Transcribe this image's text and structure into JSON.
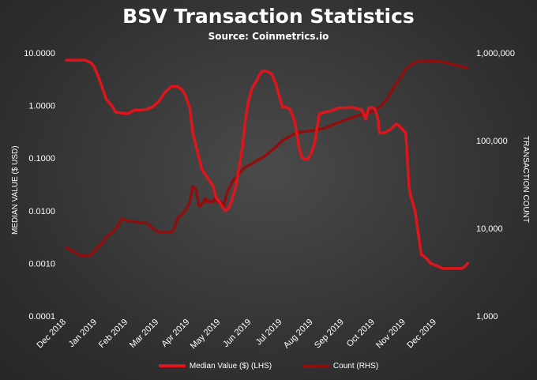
{
  "chart_data": {
    "type": "line",
    "title": "BSV Transaction Statistics",
    "subtitle": "Source:  Coinmetrics.io",
    "ylabel_left": "MEDIAN VALUE ($ USD)",
    "ylabel_right": "TRANSACTION COUNT",
    "y_left_scale": "log",
    "y_right_scale": "log",
    "y_left_ticks": [
      "10.0000",
      "1.0000",
      "0.1000",
      "0.0100",
      "0.0010",
      "0.0001"
    ],
    "y_left_tick_values": [
      10,
      1,
      0.1,
      0.01,
      0.001,
      0.0001
    ],
    "y_right_ticks": [
      "1,000,000",
      "100,000",
      "10,000",
      "1,000"
    ],
    "y_right_tick_values": [
      1000000,
      100000,
      10000,
      1000
    ],
    "ylim_left": [
      0.0001,
      10
    ],
    "ylim_right": [
      1000,
      1000000
    ],
    "x_ticks": [
      "Dec 2018",
      "Jan 2019",
      "Feb 2019",
      "Mar 2019",
      "Apr 2019",
      "May 2019",
      "Jun 2019",
      "Jul 2019",
      "Aug 2019",
      "Sep 2019",
      "Oct 2019",
      "Nov 2019",
      "Dec 2019"
    ],
    "xlim": [
      0,
      13
    ],
    "grid": false,
    "legend": "bottom",
    "series": [
      {
        "name": "Median Value ($) (LHS)",
        "axis": "left",
        "color": "#e0141b",
        "x": [
          0,
          0.3,
          0.6,
          0.8,
          0.9,
          1.0,
          1.1,
          1.2,
          1.3,
          1.5,
          1.6,
          1.8,
          2.0,
          2.2,
          2.4,
          2.6,
          2.8,
          3.0,
          3.2,
          3.4,
          3.5,
          3.6,
          3.65,
          3.75,
          3.85,
          4.0,
          4.1,
          4.3,
          4.4,
          4.6,
          4.75,
          4.85,
          4.95,
          5.05,
          5.15,
          5.25,
          5.35,
          5.5,
          5.7,
          5.8,
          5.9,
          6.0,
          6.1,
          6.2,
          6.25,
          6.35,
          6.5,
          6.65,
          6.8,
          6.9,
          7.0,
          7.1,
          7.25,
          7.4,
          7.55,
          7.65,
          7.75,
          7.85,
          7.95,
          8.05,
          8.2,
          8.4,
          8.6,
          8.8,
          9.0,
          9.2,
          9.35,
          9.45,
          9.55,
          9.65,
          9.7,
          9.8,
          9.9,
          10.0,
          10.1,
          10.15,
          10.3,
          10.5,
          10.6,
          10.7,
          10.8,
          10.9,
          11.0,
          11.05,
          11.1,
          11.15,
          11.3,
          11.5,
          11.7,
          11.8,
          12.0,
          12.2,
          12.4,
          12.6,
          12.8,
          12.9,
          13.0
        ],
        "values": [
          7.3,
          7.3,
          7.3,
          6.5,
          5.5,
          4.0,
          2.8,
          1.9,
          1.3,
          0.95,
          0.75,
          0.72,
          0.7,
          0.82,
          0.82,
          0.85,
          0.95,
          1.2,
          1.8,
          2.3,
          2.3,
          2.3,
          2.2,
          2.0,
          1.6,
          0.9,
          0.3,
          0.1,
          0.06,
          0.04,
          0.03,
          0.018,
          0.015,
          0.012,
          0.01,
          0.011,
          0.015,
          0.03,
          0.15,
          0.5,
          1.2,
          2.0,
          2.6,
          3.2,
          3.8,
          4.5,
          4.5,
          4.0,
          2.5,
          1.5,
          0.95,
          0.95,
          0.85,
          0.5,
          0.15,
          0.1,
          0.095,
          0.1,
          0.13,
          0.2,
          0.7,
          0.75,
          0.8,
          0.9,
          0.9,
          0.92,
          0.9,
          0.85,
          0.85,
          0.68,
          0.55,
          0.9,
          0.92,
          0.85,
          0.55,
          0.3,
          0.3,
          0.35,
          0.4,
          0.45,
          0.4,
          0.35,
          0.3,
          0.1,
          0.03,
          0.02,
          0.01,
          0.0015,
          0.0012,
          0.001,
          0.0009,
          0.0008,
          0.0008,
          0.0008,
          0.0008,
          0.00085,
          0.001
        ]
      },
      {
        "name": "Count (RHS)",
        "axis": "right",
        "color": "#8f0f0f",
        "x": [
          0,
          0.2,
          0.4,
          0.6,
          0.8,
          1.0,
          1.1,
          1.2,
          1.3,
          1.4,
          1.5,
          1.6,
          1.7,
          1.8,
          1.9,
          2.0,
          2.1,
          2.2,
          2.4,
          2.6,
          2.8,
          3.0,
          3.2,
          3.4,
          3.5,
          3.6,
          3.7,
          3.8,
          3.9,
          4.0,
          4.1,
          4.2,
          4.3,
          4.35,
          4.45,
          4.5,
          4.55,
          4.6,
          4.65,
          4.75,
          4.8,
          4.9,
          5.0,
          5.1,
          5.2,
          5.3,
          5.4,
          5.5,
          5.6,
          5.7,
          5.8,
          5.9,
          6.0,
          6.2,
          6.4,
          6.6,
          6.8,
          7.0,
          7.2,
          7.4,
          7.6,
          7.8,
          8.0,
          8.2,
          8.4,
          8.6,
          8.8,
          9.0,
          9.2,
          9.4,
          9.6,
          9.8,
          10.0,
          10.2,
          10.4,
          10.6,
          10.8,
          11.0,
          11.2,
          11.4,
          11.6,
          11.8,
          12.0,
          12.2,
          12.4,
          12.6,
          12.8,
          13.0
        ],
        "values": [
          6000,
          5500,
          5000,
          4800,
          5000,
          6000,
          6500,
          7000,
          8000,
          8500,
          9000,
          10000,
          11000,
          13000,
          12500,
          12000,
          12000,
          12000,
          11500,
          11500,
          10000,
          9000,
          9000,
          9000,
          10000,
          13000,
          14000,
          15000,
          17000,
          20000,
          30000,
          28000,
          18000,
          18000,
          20000,
          22000,
          20000,
          21000,
          20000,
          20000,
          22000,
          20000,
          20000,
          18000,
          25000,
          30000,
          35000,
          38000,
          42000,
          46000,
          50000,
          52000,
          54000,
          60000,
          65000,
          75000,
          85000,
          100000,
          110000,
          120000,
          125000,
          128000,
          130000,
          135000,
          140000,
          150000,
          160000,
          170000,
          180000,
          190000,
          200000,
          210000,
          220000,
          250000,
          300000,
          400000,
          500000,
          650000,
          750000,
          800000,
          820000,
          800000,
          800000,
          790000,
          760000,
          730000,
          700000,
          670000
        ]
      }
    ]
  }
}
